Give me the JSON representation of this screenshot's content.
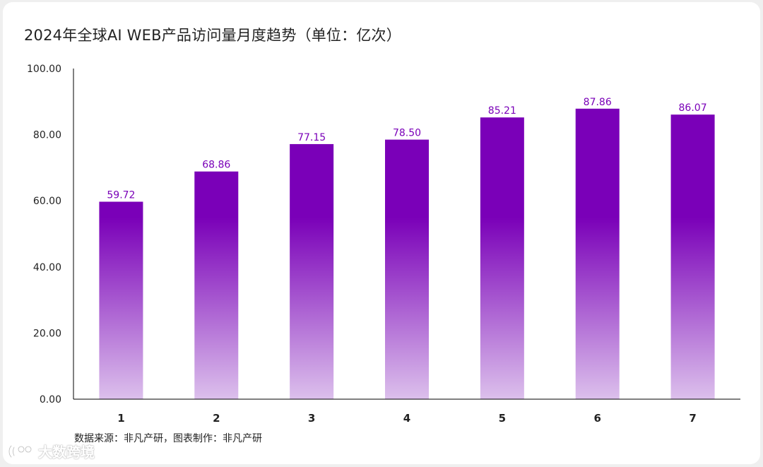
{
  "title": "2024年全球AI WEB产品访问量月度趋势（单位：亿次）",
  "source": "数据来源：非凡产研，图表制作：非凡产研",
  "watermark": "大数跨境",
  "colors": {
    "bar_top": "#7a00b8",
    "bar_bottom": "#dcc0ec",
    "label": "#7a00b8"
  },
  "chart_data": {
    "type": "bar",
    "title": "2024年全球AI WEB产品访问量月度趋势（单位：亿次）",
    "categories": [
      "1",
      "2",
      "3",
      "4",
      "5",
      "6",
      "7"
    ],
    "values": [
      59.72,
      68.86,
      77.15,
      78.5,
      85.21,
      87.86,
      86.07
    ],
    "value_labels": [
      "59.72",
      "68.86",
      "77.15",
      "78.50",
      "85.21",
      "87.86",
      "86.07"
    ],
    "ylim": [
      0,
      100
    ],
    "yticks": [
      "0.00",
      "20.00",
      "40.00",
      "60.00",
      "80.00",
      "100.00"
    ],
    "xlabel": "",
    "ylabel": "",
    "grid": false,
    "legend": "none"
  }
}
